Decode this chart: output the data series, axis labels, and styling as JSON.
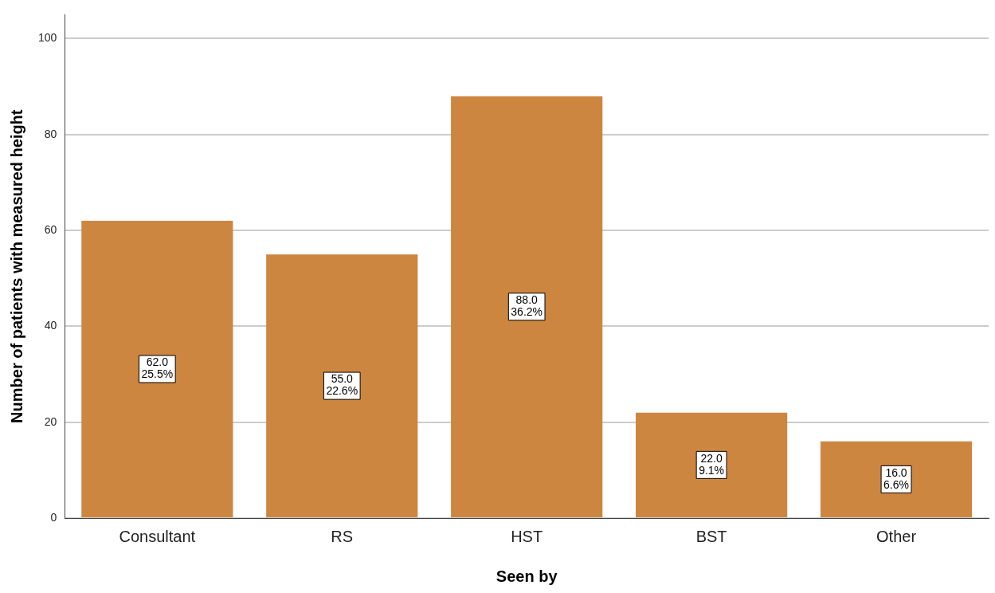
{
  "chart_data": {
    "type": "bar",
    "xlabel": "Seen by",
    "ylabel": "Number of patients with measured height",
    "categories": [
      "Consultant",
      "RS",
      "HST",
      "BST",
      "Other"
    ],
    "values": [
      62,
      55,
      88,
      22,
      16
    ],
    "value_labels": [
      "62.0\n25.5%",
      "55.0\n22.6%",
      "88.0\n36.2%",
      "22.0\n9.1%",
      "16.0\n6.6%"
    ],
    "color": "#cd8640",
    "ylim": [
      0,
      105
    ],
    "yticks": [
      0,
      20,
      40,
      60,
      80,
      100
    ],
    "grid": "y",
    "legend": false
  }
}
